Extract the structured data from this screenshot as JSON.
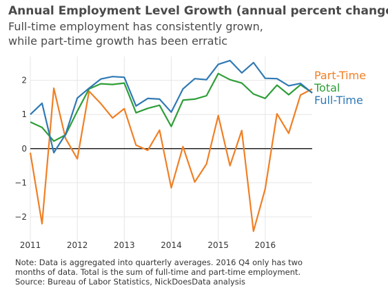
{
  "title": "Annual Employment Level Growth (annual percent change)",
  "subtitle_lines": [
    "Full-time employment has consistently grown,",
    "while part-time growth has been erratic"
  ],
  "notes": [
    "Note: Data is aggregated into quarterly averages. 2016 Q4 only has two",
    "months of data. Total is the sum of full-time and part-time employment.",
    "Source: Bureau of Labor Statistics, NickDoesData analysis"
  ],
  "colors": {
    "part_time": "#f07f24",
    "total": "#2e9e38",
    "full_time": "#2f79b4",
    "grid": "#e6e6e6",
    "zero_line": "#222222",
    "tick_text": "#333333"
  },
  "chart_data": {
    "type": "line",
    "x": [
      2011.0,
      2011.25,
      2011.5,
      2011.75,
      2012.0,
      2012.25,
      2012.5,
      2012.75,
      2013.0,
      2013.25,
      2013.5,
      2013.75,
      2014.0,
      2014.25,
      2014.5,
      2014.75,
      2015.0,
      2015.25,
      2015.5,
      2015.75,
      2016.0,
      2016.25,
      2016.5,
      2016.75,
      2017.0
    ],
    "x_ticks": [
      2011,
      2012,
      2013,
      2014,
      2015,
      2016
    ],
    "x_tick_labels": [
      "2011",
      "2012",
      "2013",
      "2014",
      "2015",
      "2016"
    ],
    "y_ticks": [
      -2,
      -1,
      0,
      1,
      2
    ],
    "y_tick_labels": [
      "−2",
      "−1",
      "0",
      "1",
      "2"
    ],
    "xlim": [
      2011.0,
      2017.0
    ],
    "ylim": [
      -2.75,
      2.7
    ],
    "grid": true,
    "legend_placement": "right, at line ends",
    "series": [
      {
        "name": "Part-Time",
        "color_key": "part_time",
        "values": [
          -0.12,
          -2.2,
          1.77,
          0.3,
          -0.3,
          1.68,
          1.32,
          0.9,
          1.17,
          0.1,
          -0.05,
          0.54,
          -1.15,
          0.06,
          -0.98,
          -0.45,
          0.97,
          -0.5,
          0.53,
          -2.42,
          -1.18,
          1.02,
          0.45,
          1.57,
          1.75
        ]
      },
      {
        "name": "Total",
        "color_key": "total",
        "values": [
          0.78,
          0.62,
          0.22,
          0.4,
          1.1,
          1.75,
          1.9,
          1.88,
          1.92,
          1.05,
          1.18,
          1.27,
          0.65,
          1.42,
          1.45,
          1.55,
          2.2,
          2.02,
          1.92,
          1.6,
          1.47,
          1.86,
          1.58,
          1.87,
          1.64
        ]
      },
      {
        "name": "Full-Time",
        "color_key": "full_time",
        "values": [
          1.0,
          1.33,
          -0.12,
          0.42,
          1.48,
          1.77,
          2.04,
          2.11,
          2.09,
          1.25,
          1.47,
          1.45,
          1.07,
          1.75,
          2.05,
          2.02,
          2.47,
          2.58,
          2.22,
          2.52,
          2.06,
          2.05,
          1.84,
          1.91,
          1.63
        ]
      }
    ]
  }
}
